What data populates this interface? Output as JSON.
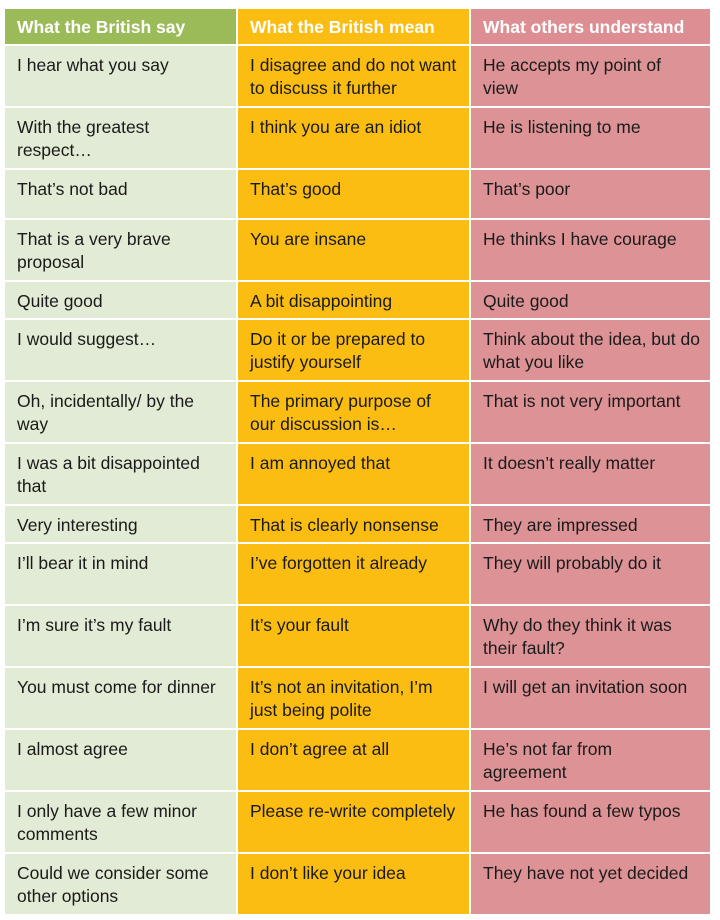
{
  "colors": {
    "header_col1": "#9bbb59",
    "header_col2": "#fbbd12",
    "header_col3": "#dd8e93",
    "body_col1": "#e2ebd5",
    "body_col2": "#fbbd12",
    "body_col3": "#dd9396"
  },
  "headers": [
    "What the British say",
    "What the British mean",
    "What others understand"
  ],
  "rows": [
    [
      "I hear what you say",
      "I disagree and do not want to discuss it further",
      "He accepts my point of view"
    ],
    [
      "With the greatest respect…",
      "I think you are an idiot",
      "He is listening to me"
    ],
    [
      "That’s not bad",
      "That’s good",
      "That’s poor"
    ],
    [
      "That is a very brave proposal",
      "You are insane",
      "He thinks I have courage"
    ],
    [
      "Quite good",
      "A bit disappointing",
      "Quite good"
    ],
    [
      "I would suggest…",
      "Do it or be prepared to justify yourself",
      "Think about the idea, but do what you like"
    ],
    [
      "Oh, incidentally/ by the way",
      "The primary purpose of our discussion is…",
      "That is not very important"
    ],
    [
      "I was a bit disappointed that",
      "I am annoyed that",
      "It doesn’t really matter"
    ],
    [
      "Very interesting",
      "That is clearly nonsense",
      "They are impressed"
    ],
    [
      "I’ll bear it in mind",
      "I’ve forgotten it already",
      "They will probably do it"
    ],
    [
      "I’m sure it’s my fault",
      "It’s your fault",
      "Why do they think it was their fault?"
    ],
    [
      "You must come for dinner",
      "It’s not an invitation, I’m just being polite",
      "I will get an invitation soon"
    ],
    [
      "I almost agree",
      "I don’t agree at all",
      "He’s not far from agreement"
    ],
    [
      "I only have a few minor comments",
      "Please re-write completely",
      "He has found a few typos"
    ],
    [
      "Could we consider some other options",
      "I don’t like your idea",
      "They have not yet decided"
    ]
  ]
}
